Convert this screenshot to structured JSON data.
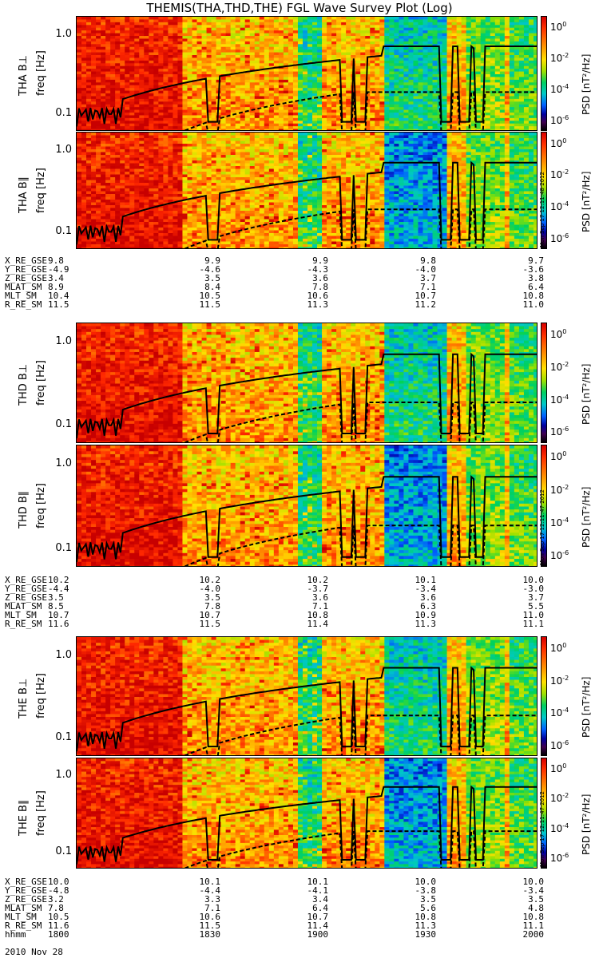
{
  "title": "THEMIS(THA,THD,THE) FGL Wave Survey Plot (Log)",
  "axes": {
    "y_unit_label": "freq [Hz]",
    "y_ticks": [
      "1.0",
      "0.1"
    ],
    "colorbar_label": "PSD [nT²/Hz]",
    "colorbar_ticks": [
      "10^0",
      "10^-2",
      "10^-4",
      "10^-6"
    ]
  },
  "panels": [
    {
      "label": "THA B⊥",
      "stamp": ""
    },
    {
      "label": "THA B∥",
      "stamp": "Mon Sep 17 12:11:48 2012"
    },
    {
      "label": "THD B⊥",
      "stamp": ""
    },
    {
      "label": "THD B∥",
      "stamp": "Mon Sep 17 12:11:47 2012"
    },
    {
      "label": "THE B⊥",
      "stamp": ""
    },
    {
      "label": "THE B∥",
      "stamp": "Mon Sep 17 12:11:47 2012"
    }
  ],
  "ephemeris": [
    {
      "rows": [
        {
          "label": "X_RE_GSE",
          "values": [
            "9.8",
            "9.9",
            "9.9",
            "9.8",
            "9.7"
          ]
        },
        {
          "label": "Y_RE_GSE",
          "values": [
            "-4.9",
            "-4.6",
            "-4.3",
            "-4.0",
            "-3.6"
          ]
        },
        {
          "label": "Z_RE_GSE",
          "values": [
            "3.4",
            "3.5",
            "3.6",
            "3.7",
            "3.8"
          ]
        },
        {
          "label": "MLAT_SM",
          "values": [
            "8.9",
            "8.4",
            "7.8",
            "7.1",
            "6.4"
          ]
        },
        {
          "label": "MLT_SM",
          "values": [
            "10.4",
            "10.5",
            "10.6",
            "10.7",
            "10.8"
          ]
        },
        {
          "label": "R_RE_SM",
          "values": [
            "11.5",
            "11.5",
            "11.3",
            "11.2",
            "11.0"
          ]
        }
      ]
    },
    {
      "rows": [
        {
          "label": "X_RE_GSE",
          "values": [
            "10.2",
            "10.2",
            "10.2",
            "10.1",
            "10.0"
          ]
        },
        {
          "label": "Y_RE_GSE",
          "values": [
            "-4.4",
            "-4.0",
            "-3.7",
            "-3.4",
            "-3.0"
          ]
        },
        {
          "label": "Z_RE_GSE",
          "values": [
            "3.5",
            "3.5",
            "3.6",
            "3.6",
            "3.7"
          ]
        },
        {
          "label": "MLAT_SM",
          "values": [
            "8.5",
            "7.8",
            "7.1",
            "6.3",
            "5.5"
          ]
        },
        {
          "label": "MLT_SM",
          "values": [
            "10.7",
            "10.7",
            "10.8",
            "10.9",
            "11.0"
          ]
        },
        {
          "label": "R_RE_SM",
          "values": [
            "11.6",
            "11.5",
            "11.4",
            "11.3",
            "11.1"
          ]
        }
      ]
    },
    {
      "rows": [
        {
          "label": "X_RE_GSE",
          "values": [
            "10.0",
            "10.1",
            "10.1",
            "10.0",
            "10.0"
          ]
        },
        {
          "label": "Y_RE_GSE",
          "values": [
            "-4.8",
            "-4.4",
            "-4.1",
            "-3.8",
            "-3.4"
          ]
        },
        {
          "label": "Z_RE_GSE",
          "values": [
            "3.2",
            "3.3",
            "3.4",
            "3.5",
            "3.5"
          ]
        },
        {
          "label": "MLAT_SM",
          "values": [
            "7.8",
            "7.1",
            "6.4",
            "5.6",
            "4.8"
          ]
        },
        {
          "label": "MLT_SM",
          "values": [
            "10.5",
            "10.6",
            "10.7",
            "10.8",
            "10.8"
          ]
        },
        {
          "label": "R_RE_SM",
          "values": [
            "11.6",
            "11.5",
            "11.4",
            "11.3",
            "11.1"
          ]
        },
        {
          "label": "hhmm",
          "values": [
            "1800",
            "1830",
            "1900",
            "1930",
            "2000"
          ]
        }
      ]
    }
  ],
  "date": "2010 Nov 28",
  "chart_data": {
    "type": "heatmap",
    "title": "THEMIS(THA,THD,THE) FGL Wave Survey Plot (Log)",
    "ylabel": "freq [Hz]",
    "yscale": "log",
    "ylim": [
      0.06,
      1.7
    ],
    "x": [
      "1800",
      "1830",
      "1900",
      "1930",
      "2000"
    ],
    "xlabel": "hhmm",
    "colorbar": {
      "label": "PSD [nT²/Hz]",
      "scale": "log",
      "range": [
        1e-06,
        10.0
      ]
    },
    "overlays": [
      "solid line: upper frequency boundary",
      "dashed line: lower frequency boundary"
    ]
  }
}
